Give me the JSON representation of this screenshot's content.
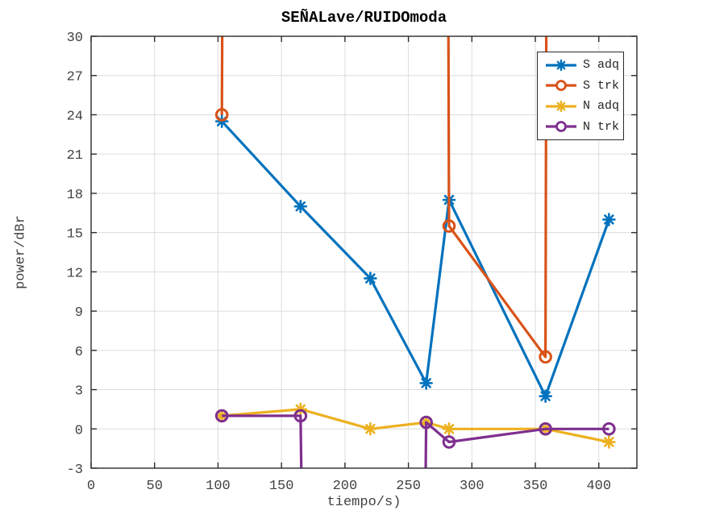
{
  "figure": {
    "background": "#ffffff"
  },
  "chart_data": {
    "type": "line",
    "title": "SEÑALave/RUIDOmoda",
    "xlabel": "tiempo/s)",
    "ylabel": "power/dBr",
    "xlim": [
      0,
      430
    ],
    "ylim": [
      -3,
      30
    ],
    "xticks": [
      0,
      50,
      100,
      150,
      200,
      250,
      300,
      350,
      400
    ],
    "yticks": [
      -3,
      0,
      3,
      6,
      9,
      12,
      15,
      18,
      21,
      24,
      27,
      30
    ],
    "grid": true,
    "box": true,
    "tick_direction": "in",
    "legend_position": "top-right",
    "axis_color": "#2b2b2b",
    "grid_color": "#dcdcdc",
    "series": [
      {
        "name": "S adq",
        "color": "#0072BD",
        "marker": "asterisk",
        "x": [
          103,
          165,
          220,
          264,
          282,
          358,
          408
        ],
        "y": [
          23.5,
          17,
          11.5,
          3.5,
          17.5,
          2.5,
          16
        ]
      },
      {
        "name": "S trk",
        "color": "#D95319",
        "marker": "circle",
        "x": [
          103,
          282,
          358
        ],
        "y": [
          24,
          15.5,
          5.5
        ],
        "offscale_note": "trace spikes above the top axis limit (y>30) near x=104, x=281 and x=359",
        "path": [
          [
            103,
            24
          ],
          [
            104,
            45
          ],
          [
            281,
            45
          ],
          [
            282,
            15.5
          ],
          [
            358,
            5.5
          ],
          [
            359,
            45
          ]
        ]
      },
      {
        "name": "N adq",
        "color": "#EDB120",
        "marker": "asterisk",
        "x": [
          103,
          165,
          220,
          264,
          282,
          358,
          408
        ],
        "y": [
          1,
          1.5,
          0,
          0.5,
          0,
          0,
          -1
        ]
      },
      {
        "name": "N trk",
        "color": "#7E2F8E",
        "marker": "circle",
        "x": [
          103,
          165,
          264,
          282,
          358,
          408
        ],
        "y": [
          1,
          1,
          0.5,
          -1,
          0,
          0
        ],
        "offscale_note": "trace dips below the bottom axis limit (y<-3) between x=166 and x=263",
        "path": [
          [
            103,
            1
          ],
          [
            165,
            1
          ],
          [
            166.5,
            -9
          ],
          [
            263,
            -9
          ],
          [
            264,
            0.5
          ],
          [
            282,
            -1
          ],
          [
            358,
            0
          ],
          [
            408,
            0
          ]
        ]
      }
    ]
  }
}
